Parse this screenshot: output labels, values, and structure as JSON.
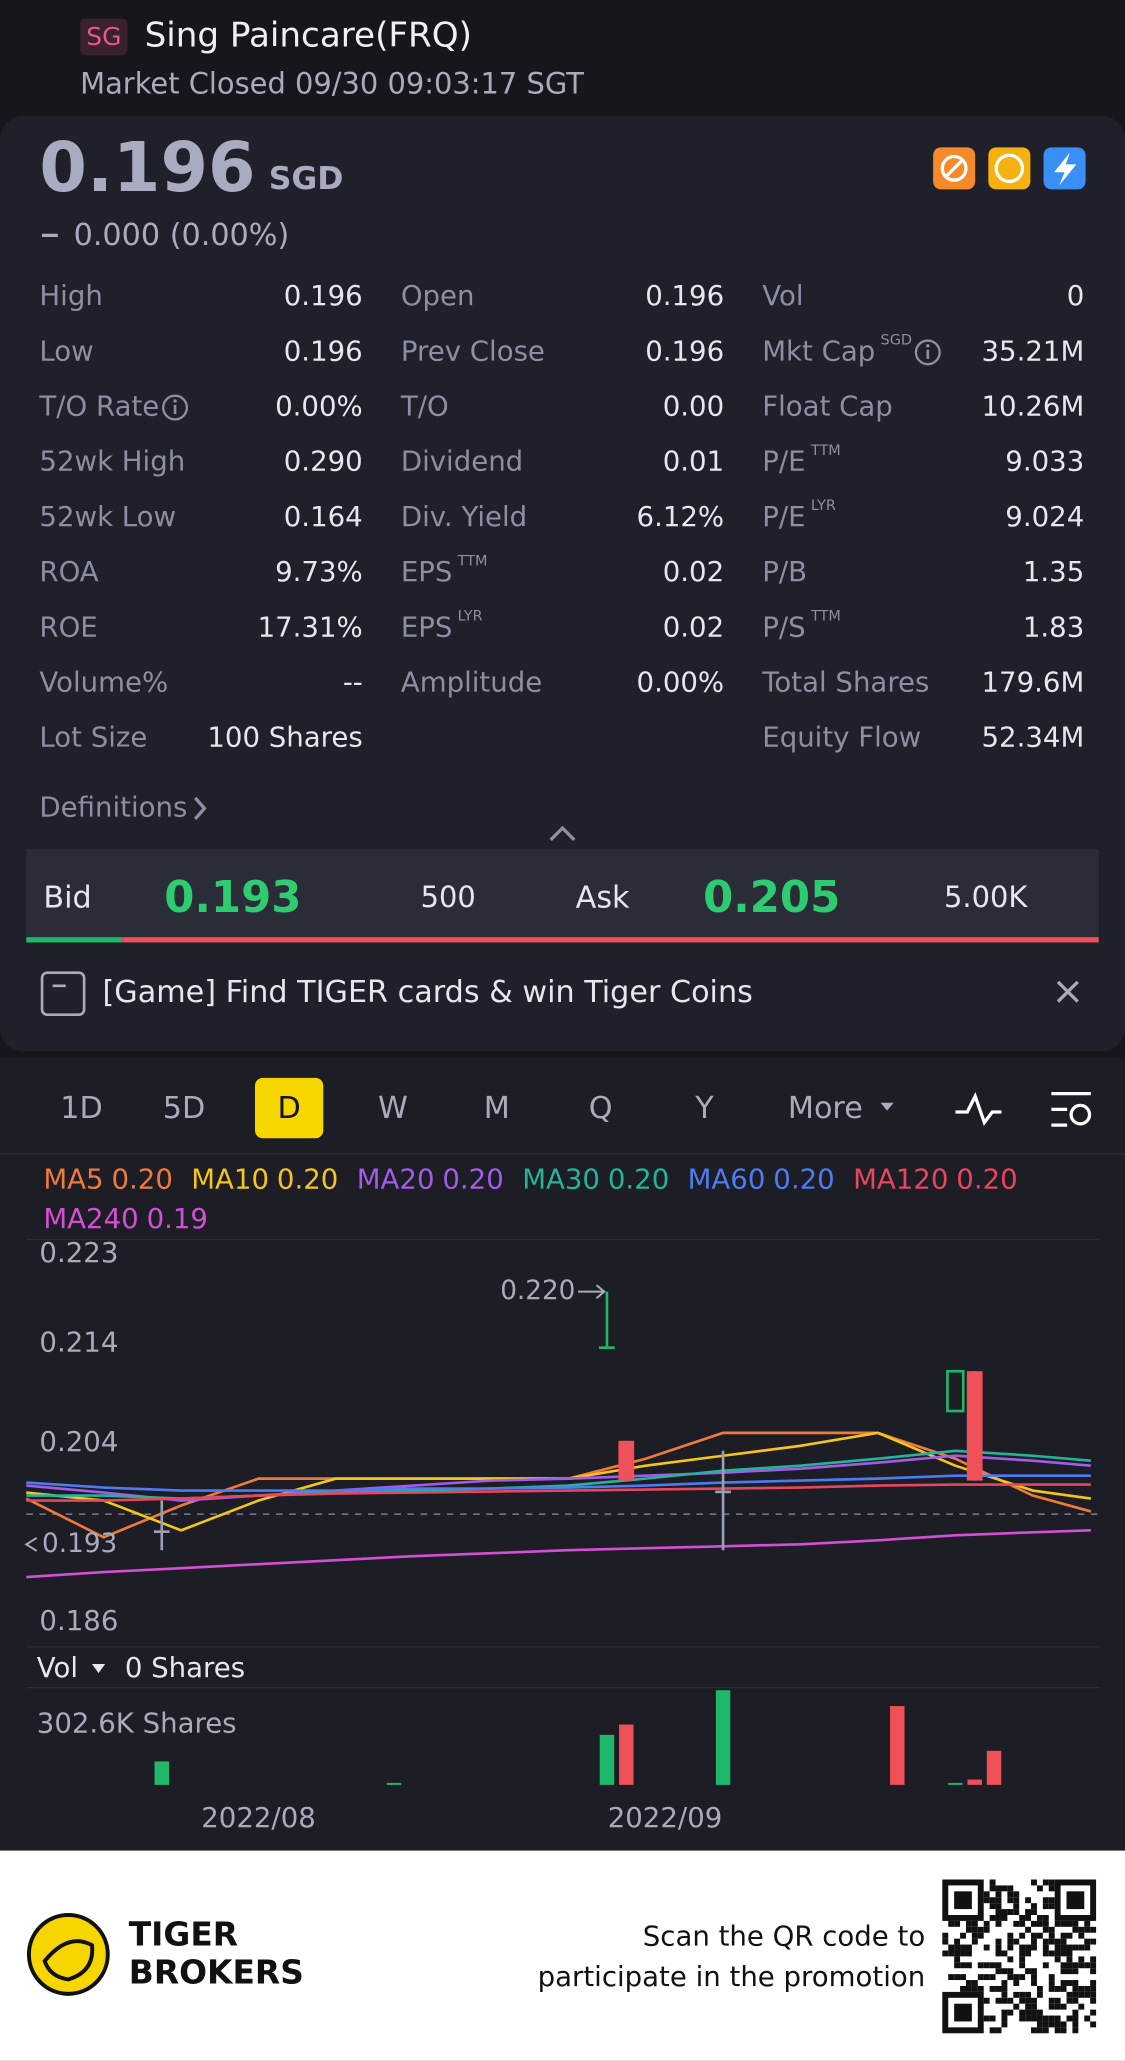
{
  "header": {
    "badge": "SG",
    "name": "Sing Paincare(FRQ)",
    "status": "Market Closed 09/30 09:03:17 SGT"
  },
  "quote": {
    "price": "0.196",
    "currency": "SGD",
    "change": "0.000 (0.00%)"
  },
  "stats": [
    [
      {
        "label": "High",
        "value": "0.196"
      },
      {
        "label": "Low",
        "value": "0.196"
      },
      {
        "label": "T/O Rate",
        "value": "0.00%",
        "info": true
      },
      {
        "label": "52wk High",
        "value": "0.290"
      },
      {
        "label": "52wk Low",
        "value": "0.164"
      },
      {
        "label": "ROA",
        "value": "9.73%"
      },
      {
        "label": "ROE",
        "value": "17.31%"
      },
      {
        "label": "Volume%",
        "value": "--"
      },
      {
        "label": "Lot Size",
        "value": "100 Shares"
      }
    ],
    [
      {
        "label": "Open",
        "value": "0.196"
      },
      {
        "label": "Prev Close",
        "value": "0.196"
      },
      {
        "label": "T/O",
        "value": "0.00"
      },
      {
        "label": "Dividend",
        "value": "0.01"
      },
      {
        "label": "Div. Yield",
        "value": "6.12%"
      },
      {
        "label": "EPS",
        "sup": "TTM",
        "value": "0.02"
      },
      {
        "label": "EPS",
        "sup": "LYR",
        "value": "0.02"
      },
      {
        "label": "Amplitude",
        "value": "0.00%"
      }
    ],
    [
      {
        "label": "Vol",
        "value": "0"
      },
      {
        "label": "Mkt Cap",
        "sup": "SGD",
        "info": true,
        "value": "35.21M"
      },
      {
        "label": "Float Cap",
        "value": "10.26M"
      },
      {
        "label": "P/E",
        "sup": "TTM",
        "value": "9.033"
      },
      {
        "label": "P/E",
        "sup": "LYR",
        "value": "9.024"
      },
      {
        "label": "P/B",
        "value": "1.35"
      },
      {
        "label": "P/S",
        "sup": "TTM",
        "value": "1.83"
      },
      {
        "label": "Total Shares",
        "value": "179.6M"
      },
      {
        "label": "Equity Flow",
        "value": "52.34M"
      }
    ]
  ],
  "definitions": "Definitions",
  "bid_ask": {
    "bid_label": "Bid",
    "bid": "0.193",
    "bid_size": "500",
    "ask_label": "Ask",
    "ask": "0.205",
    "ask_size": "5.00K"
  },
  "banner": "[Game] Find TIGER cards & win Tiger Coins",
  "periods": {
    "items": [
      "1D",
      "5D",
      "D",
      "W",
      "M",
      "Q",
      "Y",
      "More"
    ],
    "active": 2
  },
  "chart": {
    "days": 55,
    "ylim": [
      0.186,
      0.223
    ],
    "yticks": [
      0.223,
      0.214,
      0.204,
      0.186
    ],
    "high_label": "0.220",
    "last_label": "0.193",
    "ma_days": [
      0,
      4,
      8,
      12,
      16,
      20,
      24,
      28,
      32,
      36,
      40,
      44,
      48,
      52,
      55
    ],
    "ma": [
      {
        "name": "MA5",
        "label": "0.20",
        "color": "#f07a3a",
        "values": [
          0.1992,
          0.1953,
          0.1985,
          0.2012,
          0.2012,
          0.2012,
          0.2012,
          0.2012,
          0.2032,
          0.2058,
          0.2058,
          0.2058,
          0.2032,
          0.1995,
          0.1979
        ]
      },
      {
        "name": "MA10",
        "label": "0.20",
        "color": "#f5c518",
        "values": [
          0.1998,
          0.199,
          0.196,
          0.199,
          0.2012,
          0.2012,
          0.2012,
          0.2012,
          0.2025,
          0.2035,
          0.2045,
          0.2058,
          0.2025,
          0.2,
          0.1992
        ]
      },
      {
        "name": "MA20",
        "label": "0.20",
        "color": "#a15ce8",
        "values": [
          0.2005,
          0.1998,
          0.199,
          0.1995,
          0.2,
          0.2005,
          0.201,
          0.2012,
          0.2015,
          0.2018,
          0.2022,
          0.2028,
          0.2035,
          0.203,
          0.2025
        ]
      },
      {
        "name": "MA30",
        "label": "0.20",
        "color": "#26b39a",
        "values": [
          0.1995,
          0.1995,
          0.1992,
          0.1995,
          0.1998,
          0.2,
          0.2002,
          0.2005,
          0.2012,
          0.202,
          0.2025,
          0.2032,
          0.204,
          0.2035,
          0.203
        ]
      },
      {
        "name": "MA60",
        "label": "0.20",
        "color": "#4d7cf0",
        "values": [
          0.2008,
          0.2003,
          0.2,
          0.2,
          0.2,
          0.2002,
          0.2002,
          0.2003,
          0.2005,
          0.2008,
          0.201,
          0.2012,
          0.2015,
          0.2015,
          0.2015
        ]
      },
      {
        "name": "MA120",
        "label": "0.20",
        "color": "#e8455e",
        "values": [
          0.199,
          0.199,
          0.1992,
          0.1995,
          0.1997,
          0.1998,
          0.1999,
          0.2,
          0.2001,
          0.2002,
          0.2003,
          0.2005,
          0.2006,
          0.2006,
          0.2006
        ]
      },
      {
        "name": "MA240",
        "label": "0.19",
        "color": "#d54fd6",
        "values": [
          0.1913,
          0.1918,
          0.1922,
          0.1926,
          0.193,
          0.1934,
          0.1937,
          0.194,
          0.1942,
          0.1944,
          0.1946,
          0.195,
          0.1955,
          0.1958,
          0.196
        ]
      }
    ],
    "candles": [
      {
        "day": 7,
        "open": 0.196,
        "close": 0.196,
        "high": 0.199,
        "low": 0.194,
        "color": "#9aa0b4"
      },
      {
        "day": 30,
        "open": 0.2145,
        "close": 0.2145,
        "high": 0.22,
        "low": 0.2145,
        "color": "#1fb86a"
      },
      {
        "day": 31,
        "open": 0.205,
        "close": 0.201,
        "high": 0.205,
        "low": 0.201,
        "color": "#f0505a"
      },
      {
        "day": 36,
        "open": 0.2,
        "close": 0.2,
        "high": 0.204,
        "low": 0.194,
        "color": "#9aa0b4"
      },
      {
        "day": 48,
        "open": 0.208,
        "close": 0.212,
        "high": 0.212,
        "low": 0.208,
        "color": "#1fb86a"
      },
      {
        "day": 49,
        "open": 0.212,
        "close": 0.201,
        "high": 0.212,
        "low": 0.201,
        "color": "#f0505a"
      }
    ],
    "volume": {
      "label": "Vol",
      "current": "0 Shares",
      "max_label": "302.6K Shares",
      "max": 302600,
      "bars": [
        {
          "day": 7,
          "value": 75000,
          "color": "#1fb86a"
        },
        {
          "day": 19,
          "value": 3000,
          "color": "#1fb86a"
        },
        {
          "day": 30,
          "value": 160000,
          "color": "#1fb86a"
        },
        {
          "day": 31,
          "value": 193000,
          "color": "#f0505a"
        },
        {
          "day": 36,
          "value": 302600,
          "color": "#1fb86a"
        },
        {
          "day": 45,
          "value": 252000,
          "color": "#f0505a"
        },
        {
          "day": 48,
          "value": 3000,
          "color": "#1fb86a"
        },
        {
          "day": 49,
          "value": 17000,
          "color": "#f0505a"
        },
        {
          "day": 50,
          "value": 109000,
          "color": "#f0505a"
        }
      ]
    },
    "x_labels": [
      {
        "day": 12,
        "label": "2022/08"
      },
      {
        "day": 33,
        "label": "2022/09"
      }
    ]
  },
  "footer": {
    "brand1": "TIGER",
    "brand2": "BROKERS",
    "line1": "Scan the QR code to",
    "line2": "participate in the promotion"
  }
}
